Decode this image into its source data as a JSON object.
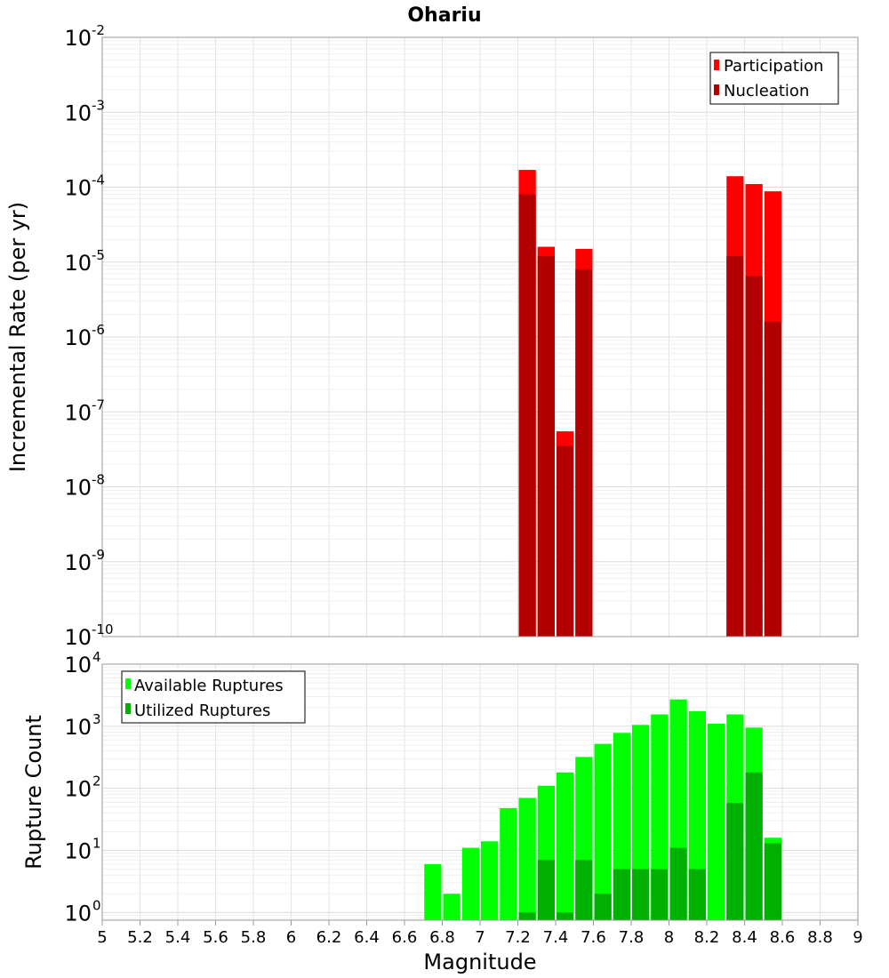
{
  "chart_data": [
    {
      "type": "bar",
      "title": "Ohariu",
      "xlabel": "",
      "ylabel": "Incremental Rate (per yr)",
      "yscale": "log",
      "ylim_exponents": [
        -10,
        -2
      ],
      "xlim": [
        5,
        9
      ],
      "bin_width": 0.1,
      "grid": true,
      "legend_position": "top-right",
      "yticks": [
        {
          "base": "10",
          "exp": "-2"
        },
        {
          "base": "10",
          "exp": "-3"
        },
        {
          "base": "10",
          "exp": "-4"
        },
        {
          "base": "10",
          "exp": "-5"
        },
        {
          "base": "10",
          "exp": "-6"
        },
        {
          "base": "10",
          "exp": "-7"
        },
        {
          "base": "10",
          "exp": "-8"
        },
        {
          "base": "10",
          "exp": "-9"
        },
        {
          "base": "10",
          "exp": "-10"
        }
      ],
      "series": [
        {
          "name": "Participation",
          "color": "#ff0000",
          "x": [
            7.25,
            7.35,
            7.45,
            7.55,
            8.35,
            8.45,
            8.55
          ],
          "values": [
            0.00017,
            1.6e-05,
            5.5e-08,
            1.5e-05,
            0.00014,
            0.00011,
            8.8e-05
          ]
        },
        {
          "name": "Nucleation",
          "color": "#b20000",
          "x": [
            7.25,
            7.35,
            7.45,
            7.55,
            8.35,
            8.45,
            8.55
          ],
          "values": [
            8e-05,
            1.2e-05,
            3.5e-08,
            8e-06,
            1.2e-05,
            6.5e-06,
            1.6e-06
          ]
        }
      ]
    },
    {
      "type": "bar",
      "title": "",
      "xlabel": "Magnitude",
      "ylabel": "Rupture Count",
      "yscale": "log",
      "ylim": [
        0.75,
        10000
      ],
      "xlim": [
        5,
        9
      ],
      "bin_width": 0.1,
      "grid": true,
      "legend_position": "top-left",
      "yticks": [
        {
          "base": "10",
          "exp": "4"
        },
        {
          "base": "10",
          "exp": "3"
        },
        {
          "base": "10",
          "exp": "2"
        },
        {
          "base": "10",
          "exp": "1"
        },
        {
          "base": "10",
          "exp": "0"
        }
      ],
      "xticks": [
        "5",
        "5.2",
        "5.4",
        "5.6",
        "5.8",
        "6",
        "6.2",
        "6.4",
        "6.6",
        "6.8",
        "7",
        "7.2",
        "7.4",
        "7.6",
        "7.8",
        "8",
        "8.2",
        "8.4",
        "8.6",
        "8.8",
        "9"
      ],
      "series": [
        {
          "name": "Available Ruptures",
          "color": "#00ff00",
          "x": [
            6.75,
            6.85,
            6.95,
            7.05,
            7.15,
            7.25,
            7.35,
            7.45,
            7.55,
            7.65,
            7.75,
            7.85,
            7.95,
            8.05,
            8.15,
            8.25,
            8.35,
            8.45,
            8.55
          ],
          "values": [
            6,
            2,
            11,
            14,
            48,
            70,
            110,
            180,
            320,
            520,
            780,
            1050,
            1550,
            2700,
            1750,
            1100,
            1550,
            950,
            16
          ]
        },
        {
          "name": "Utilized Ruptures",
          "color": "#00b000",
          "x": [
            7.25,
            7.35,
            7.45,
            7.55,
            7.65,
            7.75,
            7.85,
            7.95,
            8.05,
            8.15,
            8.35,
            8.45,
            8.55
          ],
          "values": [
            1,
            7,
            1,
            7,
            2,
            5,
            5,
            5,
            11,
            5,
            58,
            180,
            13
          ]
        }
      ]
    }
  ]
}
